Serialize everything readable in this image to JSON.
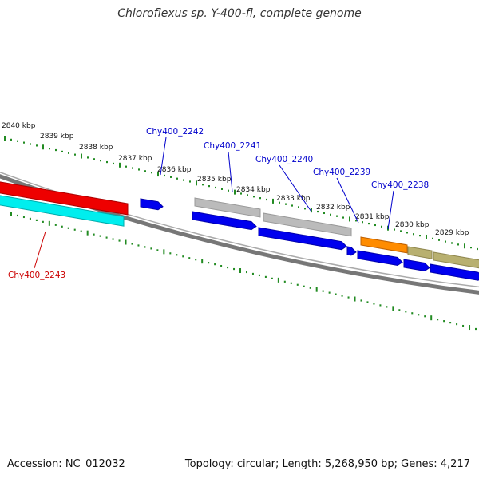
{
  "title": "Chloroflexus sp. Y-400-fl, complete genome",
  "accession_text": "Accession: NC_012032",
  "topology_text": "Topology: circular; Length: 5,268,950 bp; Genes: 4,217",
  "kbp_labels": [
    "2840 kbp",
    "2839 kbp",
    "2838 kbp",
    "2837 kbp",
    "2836 kbp",
    "2835 kbp",
    "2834 kbp",
    "2833 kbp",
    "2832 kbp",
    "2831 kbp",
    "2830 kbp",
    "2829 kbp"
  ],
  "gene_labels": [
    {
      "text": "Chy400_2242",
      "color": "#0000cc"
    },
    {
      "text": "Chy400_2241",
      "color": "#0000cc"
    },
    {
      "text": "Chy400_2240",
      "color": "#0000cc"
    },
    {
      "text": "Chy400_2239",
      "color": "#0000cc"
    },
    {
      "text": "Chy400_2238",
      "color": "#0000cc"
    },
    {
      "text": "Chy400_2243",
      "color": "#cc0000"
    }
  ],
  "colors": {
    "tick": "#228b22",
    "backbone": "#777777",
    "cds": "#0000ee",
    "gene_gray": "#bbbbbb",
    "gene_orange": "#ff8c00",
    "gene_khaki": "#b8b070",
    "gene_red": "#ee0000",
    "gene_cyan": "#00eeee"
  }
}
